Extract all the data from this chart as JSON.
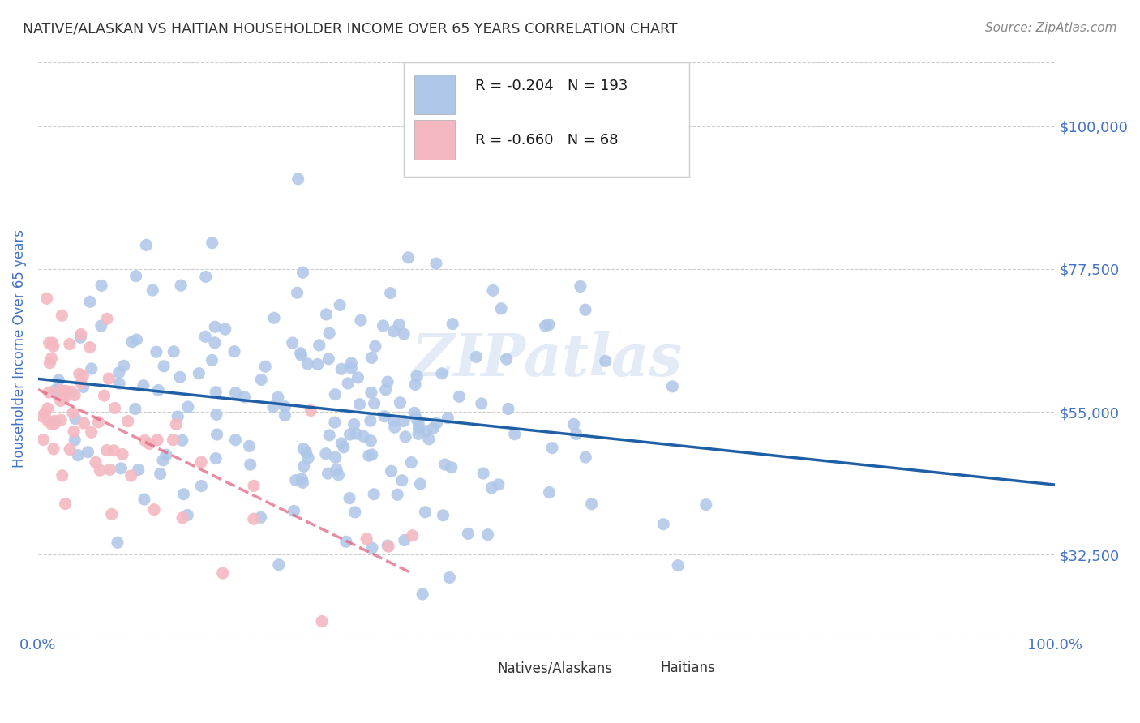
{
  "title": "NATIVE/ALASKAN VS HAITIAN HOUSEHOLDER INCOME OVER 65 YEARS CORRELATION CHART",
  "source": "Source: ZipAtlas.com",
  "ylabel": "Householder Income Over 65 years",
  "xlabel": "",
  "xlim": [
    0,
    100
  ],
  "ylim": [
    20000,
    110000
  ],
  "yticks": [
    32500,
    55000,
    77500,
    100000
  ],
  "ytick_labels": [
    "$32,500",
    "$55,000",
    "$77,500",
    "$100,000"
  ],
  "xtick_labels": [
    "0.0%",
    "100.0%"
  ],
  "series1_label": "Natives/Alaskans",
  "series1_R": -0.204,
  "series1_N": 193,
  "series1_color": "#aec6e8",
  "series1_line_color": "#1f5fa6",
  "series2_label": "Haitians",
  "series2_R": -0.66,
  "series2_N": 68,
  "series2_color": "#f4b8c1",
  "series2_line_color": "#e05c7a",
  "watermark": "ZIPatlas",
  "background_color": "#ffffff",
  "grid_color": "#cccccc",
  "title_color": "#333333",
  "axis_label_color": "#4472c4",
  "tick_label_color": "#4472c4",
  "legend_R_color": "#1f5fa6",
  "legend_N_color": "#e05c7a"
}
